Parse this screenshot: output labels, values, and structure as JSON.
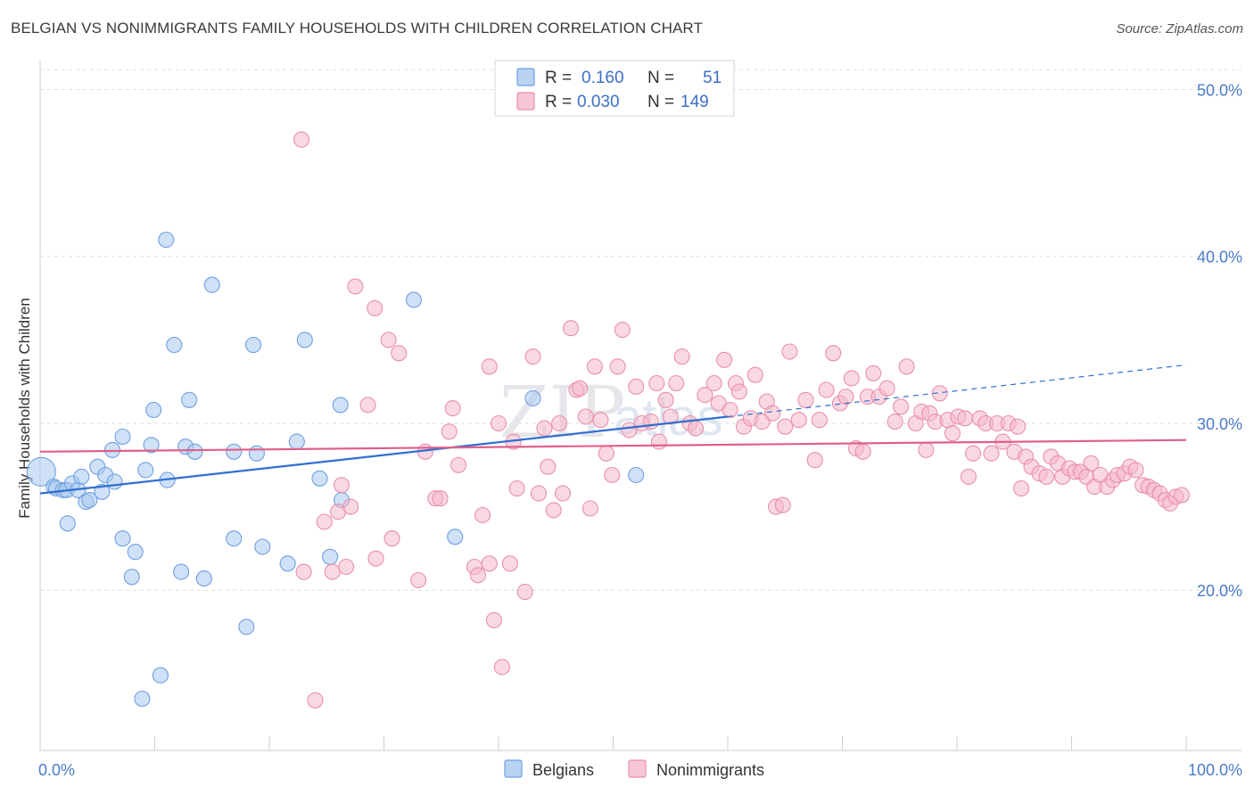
{
  "title": "BELGIAN VS NONIMMIGRANTS FAMILY HOUSEHOLDS WITH CHILDREN CORRELATION CHART",
  "source": "Source: ZipAtlas.com",
  "watermark": "ZIPatlas",
  "chart_data": {
    "type": "scatter",
    "ylabel": "Family Households with Children",
    "xlim": [
      0,
      100
    ],
    "ylim": [
      10.4,
      51.2
    ],
    "x_tick_labels": [
      {
        "x": 0,
        "label": "0.0%"
      },
      {
        "x": 100,
        "label": "100.0%"
      }
    ],
    "x_minor_ticks": [
      10,
      20,
      30,
      40,
      50,
      60,
      70,
      80,
      90,
      100
    ],
    "y_ticks": [
      {
        "y": 20,
        "label": "20.0%"
      },
      {
        "y": 30,
        "label": "30.0%"
      },
      {
        "y": 40,
        "label": "40.0%"
      },
      {
        "y": 50,
        "label": "50.0%"
      }
    ],
    "grid": "horizontal dashed",
    "legend_top": [
      {
        "r_label": "R =",
        "r": "0.160",
        "n_label": "N =",
        "n": "51",
        "color": "#a8c8f0"
      },
      {
        "r_label": "R =",
        "r": "0.030",
        "n_label": "N =",
        "n": "149",
        "color": "#f5b8cb"
      }
    ],
    "legend_bottom": [
      "Belgians",
      "Nonimmigrants"
    ],
    "series": [
      {
        "name": "Belgians",
        "fill": "#a8c8f0",
        "stroke": "#6f9fe0",
        "trend_color": "#2f6fd0",
        "trend": {
          "x0": 0,
          "y0": 25.8,
          "x1": 60,
          "y1": 30.4,
          "dash_x1": 100,
          "dash_y1": 33.5
        },
        "points": [
          [
            0.1,
            27.1
          ],
          [
            1.2,
            26.2
          ],
          [
            1.4,
            26.1
          ],
          [
            2.0,
            26.0
          ],
          [
            2.3,
            26.0
          ],
          [
            2.4,
            24.0
          ],
          [
            2.8,
            26.4
          ],
          [
            3.3,
            26.0
          ],
          [
            3.6,
            26.8
          ],
          [
            4.0,
            25.3
          ],
          [
            4.3,
            25.4
          ],
          [
            5.0,
            27.4
          ],
          [
            5.4,
            25.9
          ],
          [
            5.7,
            26.9
          ],
          [
            6.3,
            28.4
          ],
          [
            6.5,
            26.5
          ],
          [
            7.2,
            29.2
          ],
          [
            7.2,
            23.1
          ],
          [
            8.3,
            22.3
          ],
          [
            8.0,
            20.8
          ],
          [
            8.9,
            13.5
          ],
          [
            9.2,
            27.2
          ],
          [
            9.7,
            28.7
          ],
          [
            9.9,
            30.8
          ],
          [
            10.5,
            14.9
          ],
          [
            11.0,
            41.0
          ],
          [
            11.1,
            26.6
          ],
          [
            11.7,
            34.7
          ],
          [
            12.3,
            21.1
          ],
          [
            12.7,
            28.6
          ],
          [
            13.0,
            31.4
          ],
          [
            13.5,
            28.3
          ],
          [
            14.3,
            20.7
          ],
          [
            15.0,
            38.3
          ],
          [
            16.9,
            28.3
          ],
          [
            16.9,
            23.1
          ],
          [
            18.0,
            17.8
          ],
          [
            18.6,
            34.7
          ],
          [
            18.9,
            28.2
          ],
          [
            19.4,
            22.6
          ],
          [
            21.6,
            21.6
          ],
          [
            22.4,
            28.9
          ],
          [
            23.1,
            35.0
          ],
          [
            24.4,
            26.7
          ],
          [
            25.3,
            22.0
          ],
          [
            26.3,
            25.4
          ],
          [
            26.2,
            31.1
          ],
          [
            32.6,
            37.4
          ],
          [
            36.2,
            23.2
          ],
          [
            43.0,
            31.5
          ],
          [
            52.0,
            26.9
          ]
        ]
      },
      {
        "name": "Nonimmigrants",
        "fill": "#f5b8cb",
        "stroke": "#e890ab",
        "trend_color": "#e0608a",
        "trend": {
          "x0": 0,
          "y0": 28.3,
          "x1": 100,
          "y1": 29.0
        },
        "points": [
          [
            22.8,
            47.0
          ],
          [
            24.0,
            13.4
          ],
          [
            27.5,
            38.2
          ],
          [
            29.2,
            36.9
          ],
          [
            30.4,
            35.0
          ],
          [
            31.3,
            34.2
          ],
          [
            28.6,
            31.1
          ],
          [
            23.0,
            21.1
          ],
          [
            24.8,
            24.1
          ],
          [
            25.5,
            21.1
          ],
          [
            26.0,
            24.7
          ],
          [
            26.3,
            26.3
          ],
          [
            26.7,
            21.4
          ],
          [
            27.1,
            25.0
          ],
          [
            29.3,
            21.9
          ],
          [
            30.7,
            23.1
          ],
          [
            33.0,
            20.6
          ],
          [
            33.6,
            28.3
          ],
          [
            34.5,
            25.5
          ],
          [
            34.9,
            25.5
          ],
          [
            35.7,
            29.5
          ],
          [
            36.0,
            30.9
          ],
          [
            36.5,
            27.5
          ],
          [
            37.9,
            21.4
          ],
          [
            38.2,
            20.9
          ],
          [
            38.6,
            24.5
          ],
          [
            39.2,
            21.6
          ],
          [
            39.2,
            33.4
          ],
          [
            39.6,
            18.2
          ],
          [
            40.0,
            30.0
          ],
          [
            40.3,
            15.4
          ],
          [
            41.0,
            21.6
          ],
          [
            41.3,
            28.9
          ],
          [
            41.6,
            26.1
          ],
          [
            42.3,
            19.9
          ],
          [
            43.0,
            34.0
          ],
          [
            43.5,
            25.8
          ],
          [
            44.0,
            29.7
          ],
          [
            44.3,
            27.4
          ],
          [
            44.8,
            24.8
          ],
          [
            45.3,
            30.0
          ],
          [
            45.6,
            25.8
          ],
          [
            46.3,
            35.7
          ],
          [
            46.8,
            32.0
          ],
          [
            47.1,
            32.1
          ],
          [
            47.6,
            30.4
          ],
          [
            48.0,
            24.9
          ],
          [
            48.4,
            33.4
          ],
          [
            48.9,
            30.2
          ],
          [
            49.4,
            28.2
          ],
          [
            49.9,
            26.9
          ],
          [
            50.4,
            33.4
          ],
          [
            50.8,
            35.6
          ],
          [
            51.4,
            29.6
          ],
          [
            52.0,
            32.2
          ],
          [
            52.5,
            30.0
          ],
          [
            53.3,
            30.1
          ],
          [
            53.8,
            32.4
          ],
          [
            54.0,
            28.9
          ],
          [
            54.6,
            31.4
          ],
          [
            55.0,
            30.4
          ],
          [
            55.5,
            32.4
          ],
          [
            56.0,
            34.0
          ],
          [
            56.7,
            30.0
          ],
          [
            57.2,
            29.7
          ],
          [
            58.0,
            31.7
          ],
          [
            58.8,
            32.4
          ],
          [
            59.2,
            31.2
          ],
          [
            59.7,
            33.8
          ],
          [
            60.2,
            30.8
          ],
          [
            60.7,
            32.4
          ],
          [
            61.0,
            31.9
          ],
          [
            61.4,
            29.8
          ],
          [
            62.0,
            30.3
          ],
          [
            62.4,
            32.9
          ],
          [
            63.0,
            30.1
          ],
          [
            63.4,
            31.3
          ],
          [
            63.9,
            30.6
          ],
          [
            64.2,
            25.0
          ],
          [
            64.8,
            25.1
          ],
          [
            65.0,
            29.8
          ],
          [
            65.4,
            34.3
          ],
          [
            66.2,
            30.2
          ],
          [
            66.8,
            31.4
          ],
          [
            67.6,
            27.8
          ],
          [
            68.0,
            30.2
          ],
          [
            68.6,
            32.0
          ],
          [
            69.2,
            34.2
          ],
          [
            69.8,
            31.2
          ],
          [
            70.3,
            31.6
          ],
          [
            70.8,
            32.7
          ],
          [
            71.2,
            28.5
          ],
          [
            71.8,
            28.3
          ],
          [
            72.2,
            31.6
          ],
          [
            72.7,
            33.0
          ],
          [
            73.2,
            31.6
          ],
          [
            73.9,
            32.1
          ],
          [
            74.6,
            30.1
          ],
          [
            75.1,
            31.0
          ],
          [
            75.6,
            33.4
          ],
          [
            76.4,
            30.0
          ],
          [
            76.9,
            30.7
          ],
          [
            77.3,
            28.4
          ],
          [
            77.6,
            30.6
          ],
          [
            78.1,
            30.1
          ],
          [
            78.5,
            31.8
          ],
          [
            79.2,
            30.2
          ],
          [
            79.6,
            29.4
          ],
          [
            80.1,
            30.4
          ],
          [
            80.7,
            30.3
          ],
          [
            81.0,
            26.8
          ],
          [
            81.4,
            28.2
          ],
          [
            82.0,
            30.3
          ],
          [
            82.5,
            30.0
          ],
          [
            83.0,
            28.2
          ],
          [
            83.5,
            30.0
          ],
          [
            84.0,
            28.9
          ],
          [
            84.5,
            30.0
          ],
          [
            85.0,
            28.3
          ],
          [
            85.3,
            29.8
          ],
          [
            85.6,
            26.1
          ],
          [
            86.0,
            28.0
          ],
          [
            86.5,
            27.4
          ],
          [
            87.2,
            27.0
          ],
          [
            87.8,
            26.8
          ],
          [
            88.2,
            28.0
          ],
          [
            88.8,
            27.6
          ],
          [
            89.2,
            26.8
          ],
          [
            89.8,
            27.3
          ],
          [
            90.3,
            27.1
          ],
          [
            90.8,
            27.1
          ],
          [
            91.3,
            26.8
          ],
          [
            91.7,
            27.6
          ],
          [
            92.0,
            26.2
          ],
          [
            92.5,
            26.9
          ],
          [
            93.1,
            26.2
          ],
          [
            93.6,
            26.6
          ],
          [
            94.0,
            26.9
          ],
          [
            94.6,
            27.0
          ],
          [
            95.1,
            27.4
          ],
          [
            95.6,
            27.2
          ],
          [
            96.2,
            26.3
          ],
          [
            96.7,
            26.2
          ],
          [
            97.2,
            26.0
          ],
          [
            97.7,
            25.8
          ],
          [
            98.2,
            25.4
          ],
          [
            98.6,
            25.2
          ],
          [
            99.1,
            25.6
          ],
          [
            99.6,
            25.7
          ]
        ]
      }
    ]
  }
}
